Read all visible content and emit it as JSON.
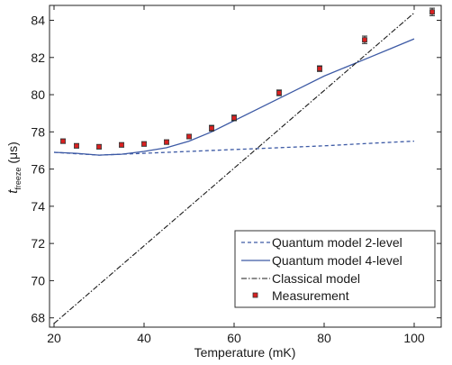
{
  "chart_data": {
    "type": "line",
    "title": "",
    "xlabel": "Temperature (mK)",
    "ylabel": {
      "main": "t",
      "subscript": "freeze",
      "unit": "(μs)"
    },
    "xlim": [
      19,
      106
    ],
    "ylim": [
      67.5,
      84.8
    ],
    "xticks": [
      20,
      40,
      60,
      80,
      100
    ],
    "yticks": [
      68,
      70,
      72,
      74,
      76,
      78,
      80,
      82,
      84
    ],
    "grid": false,
    "legend_position": "bottom-right",
    "series": [
      {
        "name": "Quantum model 2-level",
        "style": "dashed",
        "color": "#3d5aa5",
        "x": [
          20,
          30,
          40,
          50,
          60,
          70,
          80,
          90,
          100
        ],
        "y": [
          76.9,
          76.75,
          76.85,
          76.95,
          77.05,
          77.15,
          77.25,
          77.38,
          77.5
        ]
      },
      {
        "name": "Quantum model 4-level",
        "style": "solid",
        "color": "#3d5aa5",
        "x": [
          20,
          25,
          30,
          35,
          40,
          45,
          50,
          55,
          60,
          65,
          70,
          75,
          80,
          85,
          90,
          95,
          100
        ],
        "y": [
          76.9,
          76.85,
          76.75,
          76.8,
          76.95,
          77.15,
          77.5,
          78.0,
          78.6,
          79.2,
          79.8,
          80.4,
          81.0,
          81.5,
          82.0,
          82.5,
          83.0
        ]
      },
      {
        "name": "Classical model",
        "style": "dashdot",
        "color": "#1a1a1a",
        "x": [
          20,
          100
        ],
        "y": [
          67.7,
          84.4
        ]
      }
    ],
    "measurement": {
      "name": "Measurement",
      "color": "#d92020",
      "x": [
        22,
        25,
        30,
        35,
        40,
        45,
        50,
        55,
        60,
        70,
        79,
        89,
        104
      ],
      "y": [
        77.5,
        77.25,
        77.2,
        77.3,
        77.35,
        77.45,
        77.75,
        78.2,
        78.75,
        80.1,
        81.4,
        82.95,
        84.45
      ],
      "err": [
        0.12,
        0.12,
        0.12,
        0.12,
        0.12,
        0.12,
        0.12,
        0.15,
        0.15,
        0.15,
        0.15,
        0.2,
        0.2
      ]
    }
  }
}
